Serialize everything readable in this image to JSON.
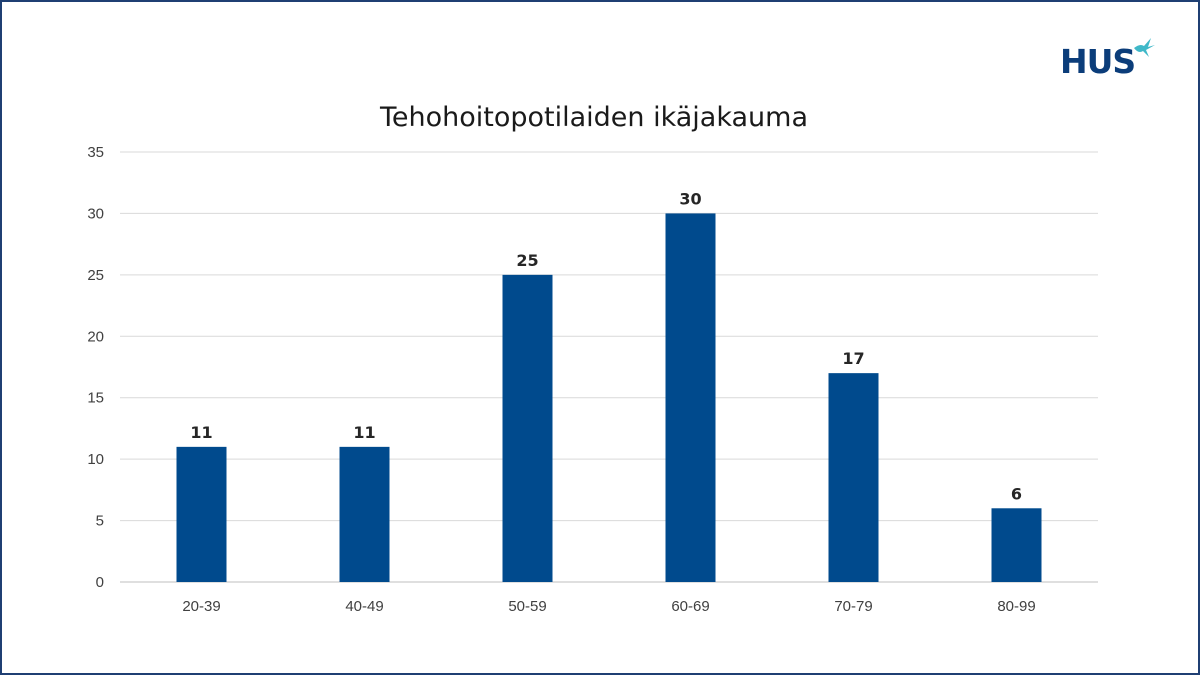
{
  "logo": {
    "text": "HUS",
    "mark_icon": "bird-icon",
    "color": "#0b3d7a",
    "mark_color": "#3fb8c8"
  },
  "chart_data": {
    "type": "bar",
    "title": "Tehohoitopotilaiden ikäjakauma",
    "categories": [
      "20-39",
      "40-49",
      "50-59",
      "60-69",
      "70-79",
      "80-99"
    ],
    "values": [
      11,
      11,
      25,
      30,
      17,
      6
    ],
    "xlabel": "",
    "ylabel": "",
    "ylim": [
      0,
      35
    ],
    "yticks": [
      0,
      5,
      10,
      15,
      20,
      25,
      30,
      35
    ],
    "grid": true,
    "legend": "none",
    "bar_color": "#004a8d",
    "data_labels": true
  }
}
